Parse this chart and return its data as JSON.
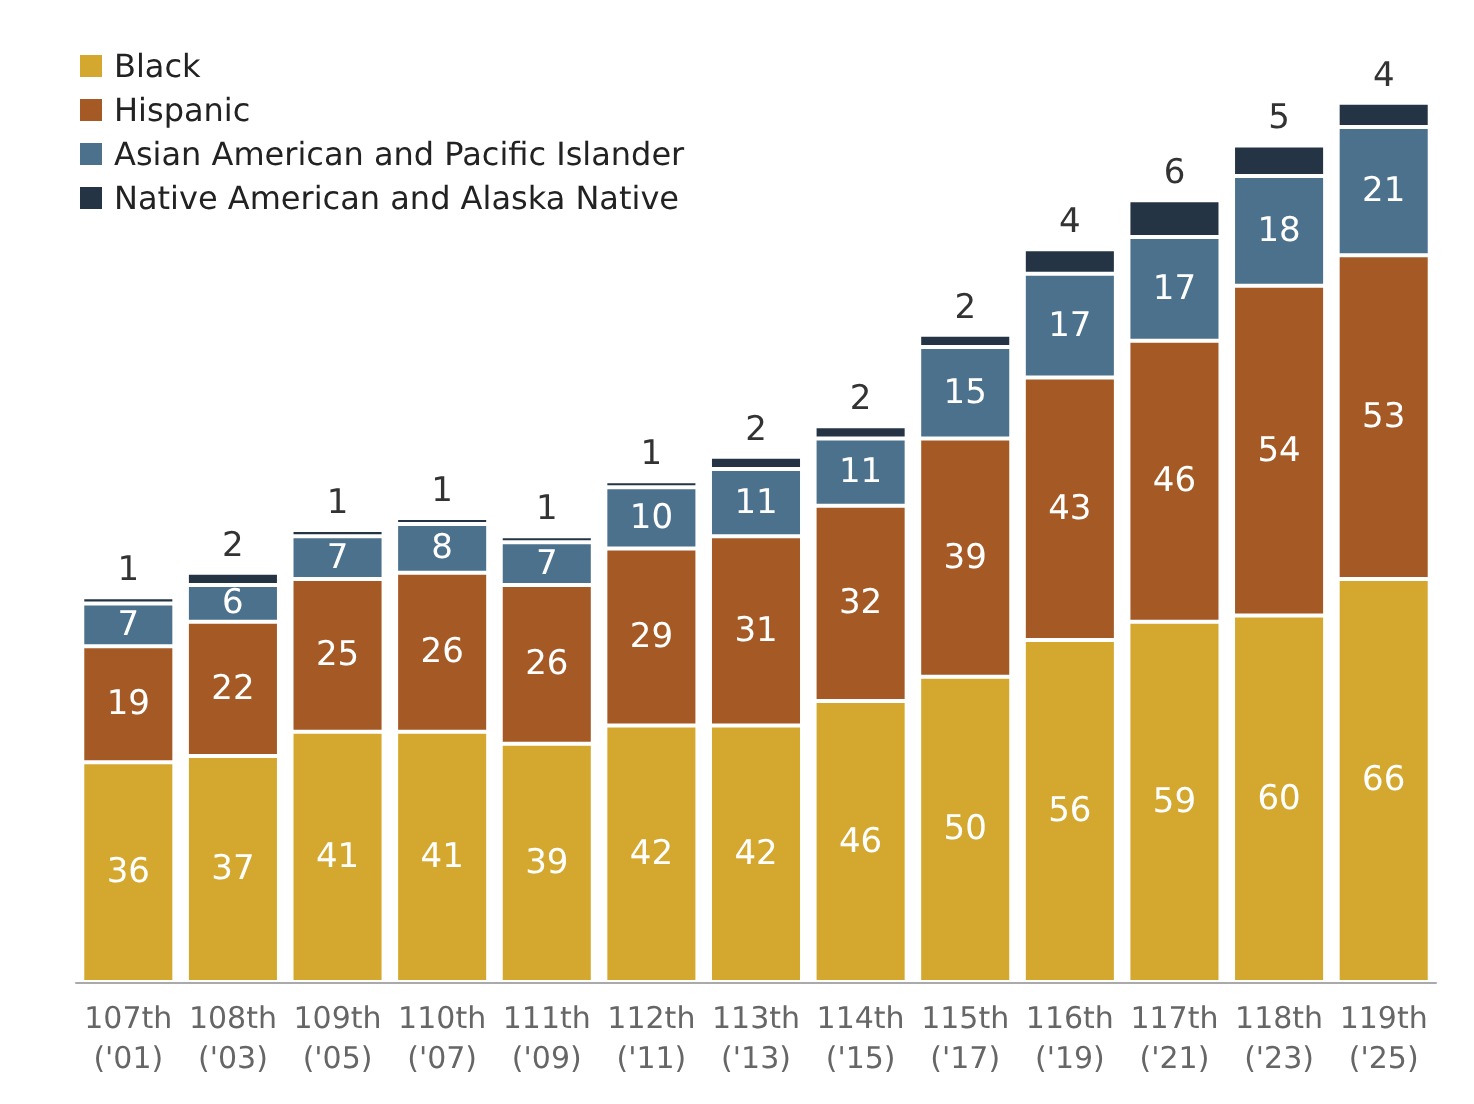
{
  "chart_data": {
    "type": "bar",
    "stacked": true,
    "data_labels": true,
    "legend": "top left",
    "grid": false,
    "tick_labels": "x",
    "categories": [
      "107th\n('01)",
      "108th\n('03)",
      "109th\n('05)",
      "110th\n('07)",
      "111th\n('09)",
      "112th\n('11)",
      "113th\n('13)",
      "114th\n('15)",
      "115th\n('17)",
      "116th\n('19)",
      "117th\n('21)",
      "118th\n('23)",
      "119th\n('25)"
    ],
    "series": [
      {
        "name": "Black",
        "color": "#d4a82f",
        "values": [
          36,
          37,
          41,
          41,
          39,
          42,
          42,
          46,
          50,
          56,
          59,
          60,
          66
        ]
      },
      {
        "name": "Hispanic",
        "color": "#a55a25",
        "values": [
          19,
          22,
          25,
          26,
          26,
          29,
          31,
          32,
          39,
          43,
          46,
          54,
          53
        ]
      },
      {
        "name": "Asian American and Pacific Islander",
        "color": "#4b718c",
        "values": [
          7,
          6,
          7,
          8,
          7,
          10,
          11,
          11,
          15,
          17,
          17,
          18,
          21
        ]
      },
      {
        "name": "Native American and Alaska Native",
        "color": "#243444",
        "values": [
          1,
          2,
          1,
          1,
          1,
          1,
          2,
          2,
          2,
          4,
          6,
          5,
          4
        ]
      }
    ]
  }
}
